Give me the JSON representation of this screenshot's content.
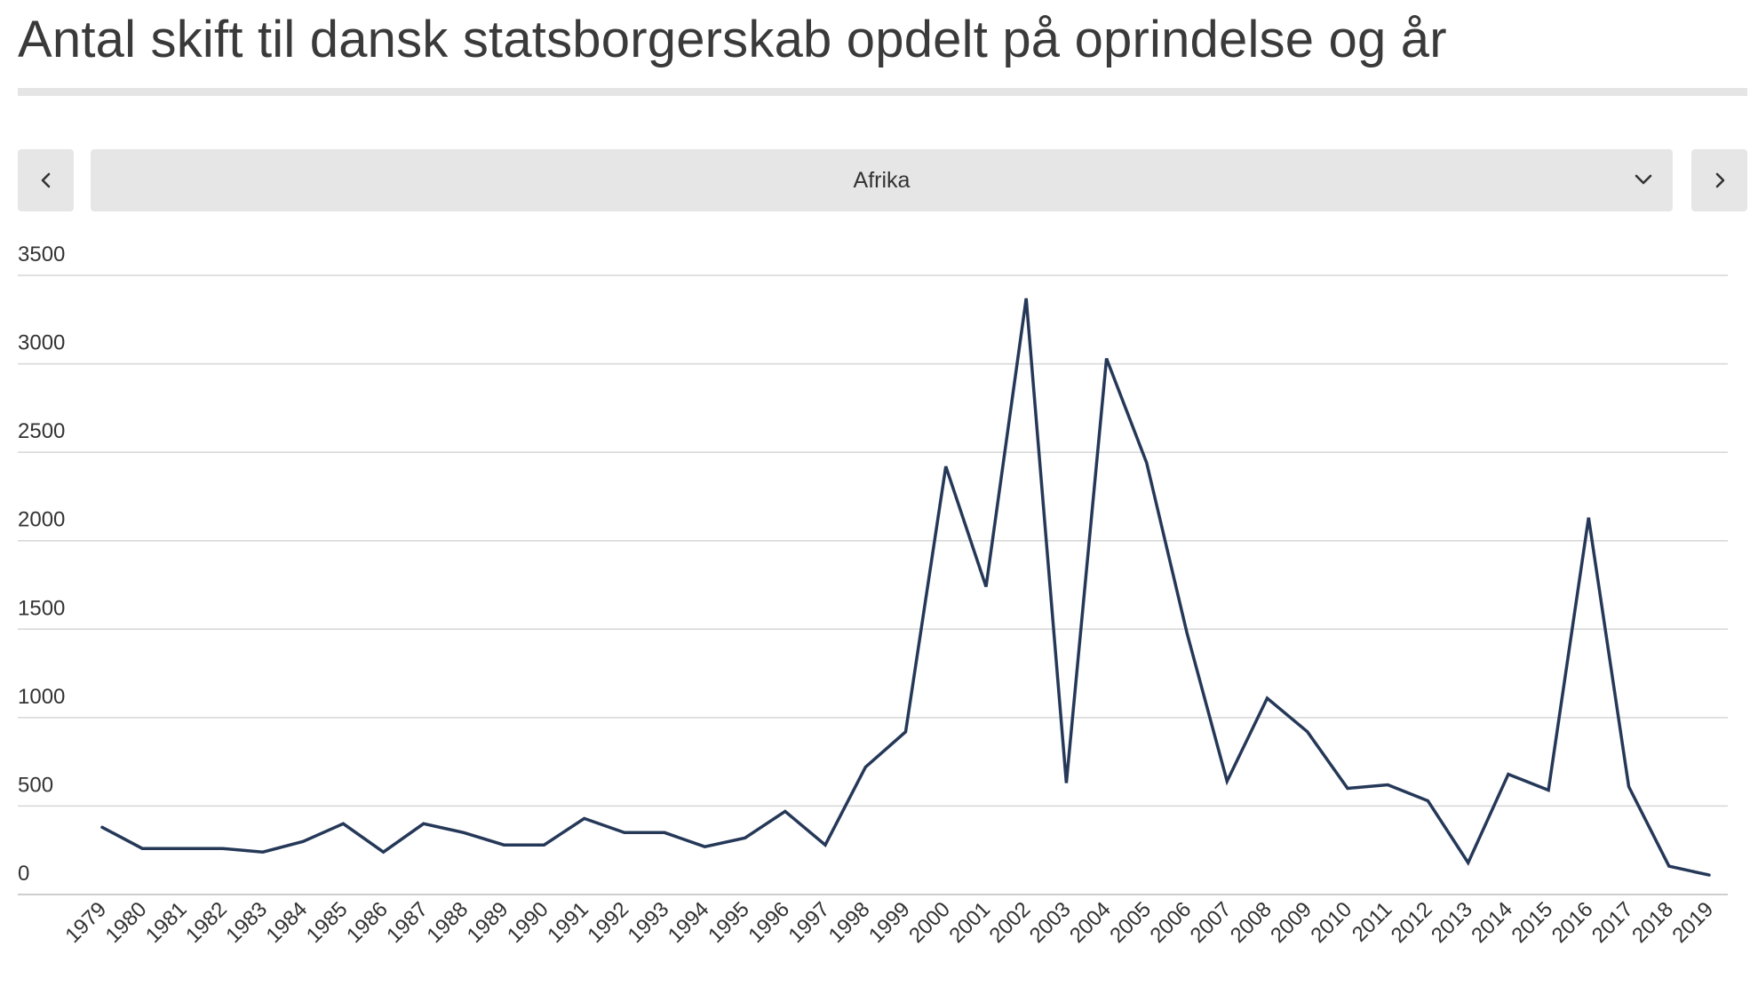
{
  "title": "Antal skift til dansk statsborgerskab opdelt på oprindelse og år",
  "selector": {
    "selected": "Afrika",
    "prev_icon": "chevron-left-icon",
    "next_icon": "chevron-right-icon",
    "dropdown_icon": "chevron-down-icon"
  },
  "colors": {
    "line": "#253858",
    "grid": "#d6d6d6",
    "button_bg": "#e6e6e6",
    "title_rule": "#e5e5e5"
  },
  "chart_data": {
    "type": "line",
    "title": "",
    "xlabel": "",
    "ylabel": "",
    "ylim": [
      0,
      3500
    ],
    "yticks": [
      0,
      500,
      1000,
      1500,
      2000,
      2500,
      3000,
      3500
    ],
    "grid": true,
    "categories": [
      "1979",
      "1980",
      "1981",
      "1982",
      "1983",
      "1984",
      "1985",
      "1986",
      "1987",
      "1988",
      "1989",
      "1990",
      "1991",
      "1992",
      "1993",
      "1994",
      "1995",
      "1996",
      "1997",
      "1998",
      "1999",
      "2000",
      "2001",
      "2002",
      "2003",
      "2004",
      "2005",
      "2006",
      "2007",
      "2008",
      "2009",
      "2010",
      "2011",
      "2012",
      "2013",
      "2014",
      "2015",
      "2016",
      "2017",
      "2018",
      "2019"
    ],
    "series": [
      {
        "values": [
          380,
          260,
          260,
          260,
          240,
          300,
          400,
          240,
          400,
          350,
          280,
          280,
          430,
          350,
          350,
          270,
          320,
          470,
          280,
          720,
          920,
          2420,
          1740,
          3370,
          630,
          3030,
          2440,
          1480,
          640,
          1110,
          920,
          600,
          620,
          530,
          180,
          680,
          590,
          2130,
          610,
          160,
          110
        ]
      }
    ]
  }
}
